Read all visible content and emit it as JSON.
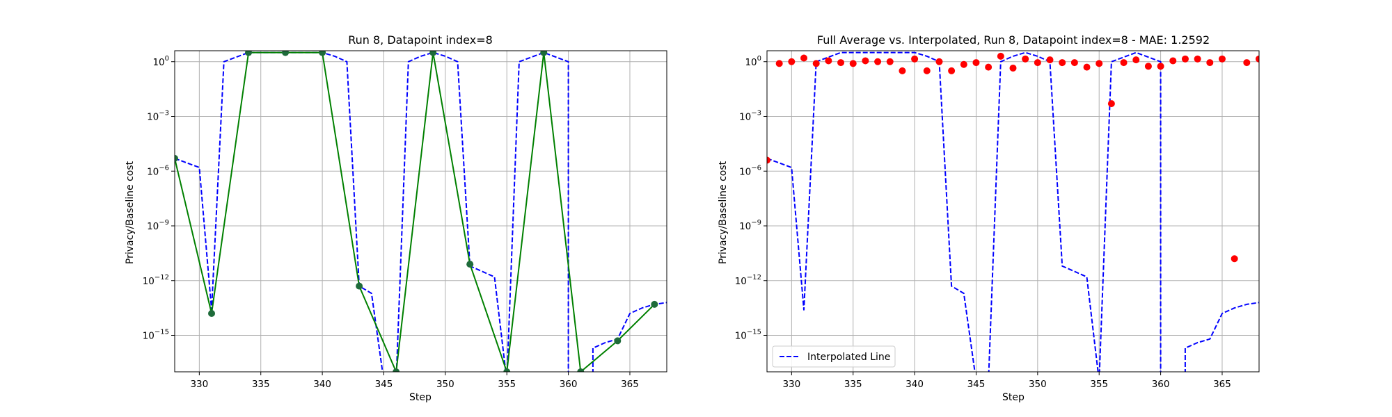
{
  "chart_data": [
    {
      "type": "line",
      "title": "Run 8, Datapoint index=8",
      "xlabel": "Step",
      "ylabel": "Privacy/Baseline cost",
      "xlim": [
        328,
        368
      ],
      "ylog": true,
      "ylim_exp": [
        -17,
        0.6
      ],
      "xticks": [
        330,
        335,
        340,
        345,
        350,
        355,
        360,
        365
      ],
      "yticks_exp": [
        0,
        -3,
        -6,
        -9,
        -12,
        -15
      ],
      "grid": true,
      "series": [
        {
          "style": "dashed",
          "color": "#0000ff",
          "x": [
            328,
            330,
            331,
            332,
            334,
            335,
            336,
            337,
            338,
            339,
            340,
            341,
            342,
            343,
            344,
            345,
            346,
            347,
            348,
            349,
            350,
            351,
            352,
            353,
            354,
            355,
            356,
            357,
            358,
            359,
            360,
            360,
            361,
            362,
            362,
            363,
            364,
            365,
            366,
            367,
            368
          ],
          "y_exp": [
            -5.3,
            -5.8,
            -13.6,
            0,
            0.5,
            0.5,
            0.5,
            0.5,
            0.5,
            0.5,
            0.5,
            0.3,
            0,
            -12.3,
            -12.7,
            -17.5,
            -17.5,
            0,
            0.3,
            0.5,
            0.3,
            0,
            -11.2,
            -11.5,
            -11.8,
            -17.5,
            0,
            0.25,
            0.5,
            0.25,
            0,
            -17.5,
            -17.5,
            -17.5,
            -15.7,
            -15.4,
            -15.2,
            -13.8,
            -13.5,
            -13.3,
            -13.2
          ]
        },
        {
          "style": "solid-markers",
          "color": "#008000",
          "marker_color": "#1e6b3a",
          "x": [
            328,
            331,
            334,
            337,
            340,
            343,
            346,
            349,
            352,
            355,
            358,
            361,
            364,
            367
          ],
          "y_exp": [
            -5.3,
            -13.8,
            0.5,
            0.5,
            0.5,
            -12.3,
            -17.0,
            0.5,
            -11.1,
            -17.0,
            0.5,
            -17.0,
            -15.3,
            -13.3
          ]
        }
      ]
    },
    {
      "type": "line",
      "title": "Full Average vs. Interpolated, Run 8, Datapoint index=8 - MAE: 1.2592",
      "xlabel": "Step",
      "ylabel": "Privacy/Baseline cost",
      "xlim": [
        328,
        368
      ],
      "ylog": true,
      "ylim_exp": [
        -17,
        0.6
      ],
      "xticks": [
        330,
        335,
        340,
        345,
        350,
        355,
        360,
        365
      ],
      "yticks_exp": [
        0,
        -3,
        -6,
        -9,
        -12,
        -15
      ],
      "grid": true,
      "legend": {
        "position": "lower-left",
        "entries": [
          "Interpolated Line"
        ]
      },
      "series": [
        {
          "name": "Interpolated Line",
          "style": "dashed",
          "color": "#0000ff",
          "x": [
            328,
            330,
            331,
            332,
            334,
            335,
            336,
            337,
            338,
            339,
            340,
            341,
            342,
            343,
            344,
            345,
            346,
            347,
            348,
            349,
            350,
            351,
            352,
            353,
            354,
            355,
            356,
            357,
            358,
            359,
            360,
            360,
            361,
            362,
            362,
            363,
            364,
            365,
            366,
            367,
            368
          ],
          "y_exp": [
            -5.3,
            -5.8,
            -13.6,
            0,
            0.5,
            0.5,
            0.5,
            0.5,
            0.5,
            0.5,
            0.5,
            0.3,
            0,
            -12.3,
            -12.7,
            -17.5,
            -17.5,
            0,
            0.3,
            0.5,
            0.3,
            0,
            -11.2,
            -11.5,
            -11.8,
            -17.5,
            0,
            0.25,
            0.5,
            0.25,
            0,
            -17.5,
            -17.5,
            -17.5,
            -15.7,
            -15.4,
            -15.2,
            -13.8,
            -13.5,
            -13.3,
            -13.2
          ]
        },
        {
          "style": "scatter",
          "color": "#ff0000",
          "x": [
            328,
            329,
            330,
            331,
            332,
            333,
            334,
            335,
            336,
            337,
            338,
            339,
            340,
            341,
            342,
            343,
            344,
            345,
            346,
            347,
            348,
            349,
            350,
            351,
            352,
            353,
            354,
            355,
            356,
            357,
            358,
            359,
            360,
            361,
            362,
            363,
            364,
            365,
            366,
            367,
            368
          ],
          "y_exp": [
            -5.4,
            -0.1,
            0.0,
            0.2,
            -0.1,
            0.05,
            -0.05,
            -0.1,
            0.05,
            0.0,
            0.0,
            -0.5,
            0.15,
            -0.5,
            0.0,
            -0.5,
            -0.15,
            -0.05,
            -0.3,
            0.3,
            -0.35,
            0.15,
            -0.05,
            0.1,
            -0.05,
            -0.05,
            -0.3,
            -0.1,
            -2.3,
            -0.05,
            0.1,
            -0.25,
            -0.25,
            0.05,
            0.15,
            0.15,
            -0.05,
            0.15,
            -10.8,
            -0.05,
            0.15
          ]
        }
      ]
    }
  ]
}
